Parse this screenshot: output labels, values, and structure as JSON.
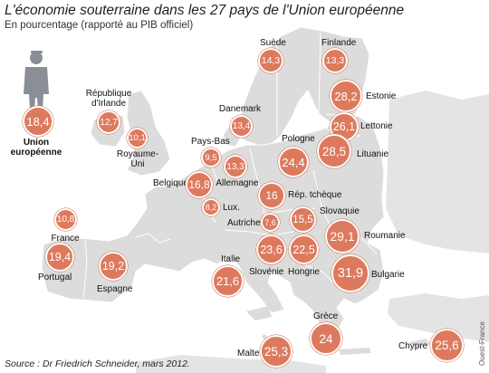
{
  "title": "L'économie souterraine dans les 27 pays de l'Union européenne",
  "subtitle": "En pourcentage (rapporté au PIB officiel)",
  "source": "Source : Dr Friedrich Schneider, mars 2012.",
  "credit": "Ouest-France",
  "unit": "%",
  "colors": {
    "bubble": "#dd7a5e",
    "land": "#dcdcdc",
    "sea": "#ffffff",
    "border": "#ffffff",
    "figure": "#8a8f96"
  },
  "icons": {
    "union": "person-silhouette-icon"
  },
  "union": {
    "label_line1": "Union",
    "label_line2": "européenne",
    "value": "18,4"
  },
  "countries": [
    {
      "name": "Suède",
      "value": "14,3"
    },
    {
      "name": "Finlande",
      "value": "13,3"
    },
    {
      "name": "République",
      "name2": "d'Irlande",
      "value": "12,7"
    },
    {
      "name": "Estonie",
      "value": "28,2"
    },
    {
      "name": "Danemark",
      "value": "13,4"
    },
    {
      "name": "Lettonie",
      "value": "26,1"
    },
    {
      "name": "Royaume-",
      "name2": "Uni",
      "value": "10,1"
    },
    {
      "name": "Pologne",
      "value": "24,4"
    },
    {
      "name": "Lituanie",
      "value": "28,5"
    },
    {
      "name": "Pays-Bas",
      "value": "9,5"
    },
    {
      "name": "Allemagne",
      "value": "13,3"
    },
    {
      "name": "Belgique",
      "value": "16,8"
    },
    {
      "name": "Lux.",
      "value": "8,2"
    },
    {
      "name": "Rép. tchèque",
      "value": "16"
    },
    {
      "name": "Slovaquie",
      "value": "15,5"
    },
    {
      "name": "Autriche",
      "value": "7,6"
    },
    {
      "name": "France",
      "value": "10,8"
    },
    {
      "name": "Roumanie",
      "value": "29,1"
    },
    {
      "name": "Portugal",
      "value": "19,4"
    },
    {
      "name": "Espagne",
      "value": "19,2"
    },
    {
      "name": "Italie",
      "value": "21,6"
    },
    {
      "name": "Slovénie",
      "value": "23,6"
    },
    {
      "name": "Hongrie",
      "value": "22,5"
    },
    {
      "name": "Bulgarie",
      "value": "31,9"
    },
    {
      "name": "Grèce",
      "value": "24"
    },
    {
      "name": "Malte",
      "value": "25,3"
    },
    {
      "name": "Chypre",
      "value": "25,6"
    }
  ]
}
